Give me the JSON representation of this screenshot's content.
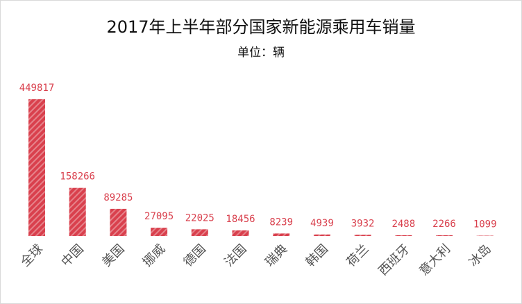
{
  "chart_data": {
    "type": "bar",
    "title": "2017年上半年部分国家新能源乘用车销量",
    "subtitle": "单位：辆",
    "categories": [
      "全球",
      "中国",
      "美国",
      "挪威",
      "德国",
      "法国",
      "瑞典",
      "韩国",
      "荷兰",
      "西班牙",
      "意大利",
      "冰岛"
    ],
    "values": [
      449817,
      158266,
      89285,
      27095,
      22025,
      18456,
      8239,
      4939,
      3932,
      2488,
      2266,
      1099
    ],
    "color": "#d9404d"
  }
}
